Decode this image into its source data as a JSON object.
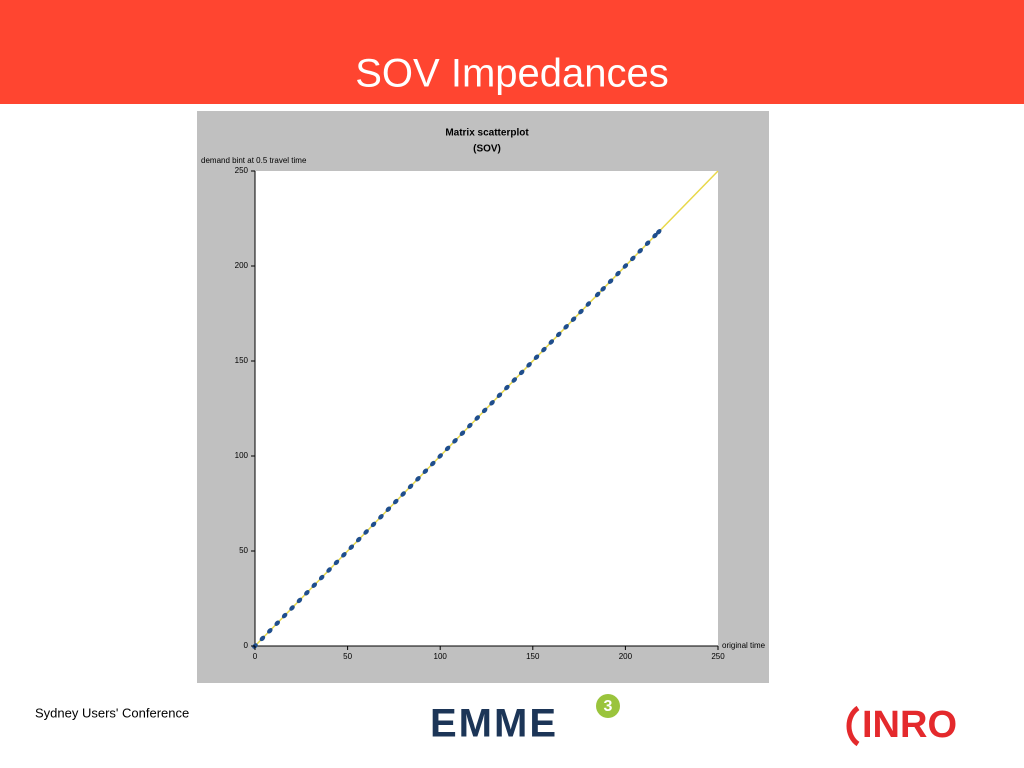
{
  "slide": {
    "title": "SOV Impedances",
    "footer": "Sydney Users' Conference",
    "logo_emme": "EMME",
    "logo_emme_version": "3",
    "logo_inro": "INRO"
  },
  "chart_data": {
    "type": "scatter",
    "title": "Matrix scatterplot",
    "subtitle": "(SOV)",
    "y_label": "demand bint at 0.5 travel time",
    "x_label": "original time",
    "color": "#1f4e8c",
    "x": [
      0,
      4,
      8,
      12,
      16,
      20,
      24,
      28,
      32,
      36,
      40,
      44,
      48,
      52,
      56,
      60,
      64,
      68,
      72,
      76,
      80,
      84,
      88,
      92,
      96,
      100,
      104,
      108,
      112,
      116,
      120,
      124,
      128,
      132,
      136,
      140,
      144,
      148,
      152,
      156,
      160,
      164,
      168,
      172,
      176,
      180,
      185,
      188,
      192,
      196,
      200,
      204,
      208,
      212,
      216,
      218
    ],
    "values": [
      0,
      4,
      8,
      12,
      16,
      20,
      24,
      28,
      32,
      36,
      40,
      44,
      48,
      52,
      56,
      60,
      64,
      68,
      72,
      76,
      80,
      84,
      88,
      92,
      96,
      100,
      104,
      108,
      112,
      116,
      120,
      124,
      128,
      132,
      136,
      140,
      144,
      148,
      152,
      156,
      160,
      164,
      168,
      172,
      176,
      180,
      185,
      188,
      192,
      196,
      200,
      204,
      208,
      212,
      216,
      218
    ],
    "xlim": [
      0,
      250
    ],
    "ylim": [
      0,
      250
    ],
    "xticks": [
      0,
      50,
      100,
      150,
      200,
      250
    ],
    "yticks": [
      0,
      50,
      100,
      150,
      200,
      250
    ]
  }
}
